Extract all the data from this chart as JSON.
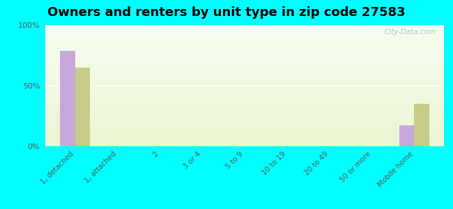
{
  "title": "Owners and renters by unit type in zip code 27583",
  "categories": [
    "1, detached",
    "1, attached",
    "2",
    "3 or 4",
    "5 to 9",
    "10 to 19",
    "20 to 49",
    "50 or more",
    "Mobile home"
  ],
  "owner_values": [
    79,
    0,
    0,
    0,
    0,
    0,
    0,
    0,
    17
  ],
  "renter_values": [
    65,
    0,
    0,
    0,
    0,
    0,
    0,
    0,
    35
  ],
  "owner_color": "#c8a8d8",
  "renter_color": "#c8cc88",
  "ylim": [
    0,
    100
  ],
  "yticks": [
    0,
    50,
    100
  ],
  "ytick_labels": [
    "0%",
    "50%",
    "100%"
  ],
  "bar_width": 0.35,
  "background_color": "#00ffff",
  "watermark": "City-Data.com",
  "title_fontsize": 13
}
